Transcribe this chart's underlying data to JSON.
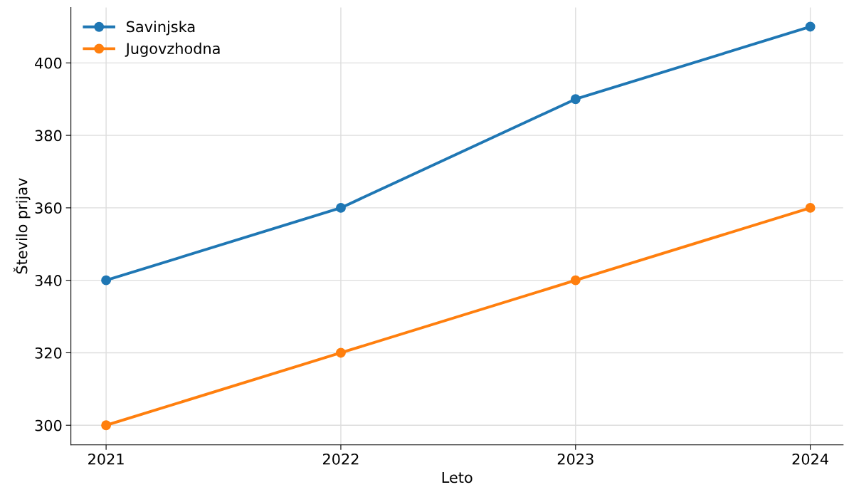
{
  "chart_data": {
    "type": "line",
    "xlabel": "Leto",
    "ylabel": "Število prijav",
    "x": [
      2021,
      2022,
      2023,
      2024
    ],
    "series": [
      {
        "name": "Savinjska",
        "color": "#1f77b4",
        "values": [
          340,
          360,
          390,
          410
        ]
      },
      {
        "name": "Jugovzhodna",
        "color": "#ff7f0e",
        "values": [
          300,
          320,
          340,
          360
        ]
      }
    ],
    "xlim": [
      2020.85,
      2024.14
    ],
    "xticks": [
      2021,
      2022,
      2023,
      2024
    ],
    "ylim": [
      294.6,
      415.3
    ],
    "yticks": [
      300,
      320,
      340,
      360,
      380,
      400
    ],
    "grid": true,
    "legend": "top left",
    "marker": "circle",
    "line_style": "solid"
  }
}
